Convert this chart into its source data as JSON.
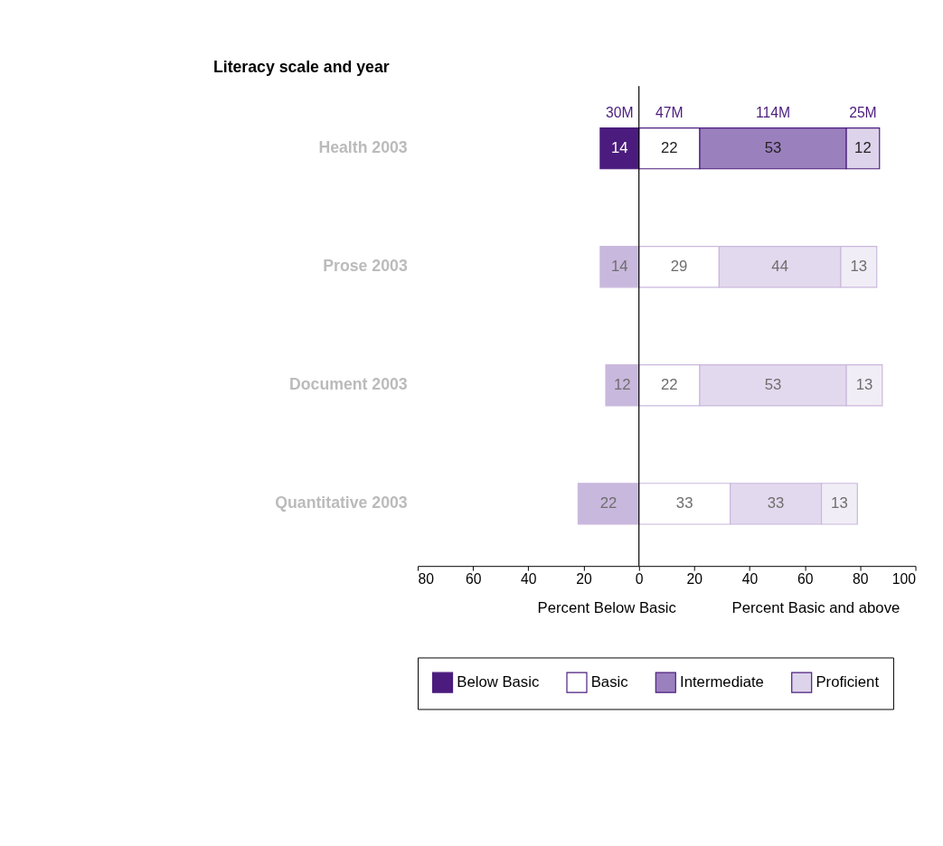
{
  "chart_data": {
    "type": "bar",
    "orientation": "horizontal",
    "ylabel": "Literacy scale and year",
    "categories": [
      "Health 2003",
      "Prose 2003",
      "Document 2003",
      "Quantitative 2003"
    ],
    "series": [
      {
        "name": "Below Basic",
        "color": "#4b1c7e",
        "colors": [
          "#4b1c7e",
          "#c9b8dd",
          "#c9b8dd",
          "#c9b8dd"
        ],
        "base": [
          -14,
          -14,
          -12,
          -22
        ],
        "values": [
          14,
          14,
          12,
          22
        ],
        "value_labels": [
          "14",
          "14",
          "12",
          "22"
        ]
      },
      {
        "name": "Basic",
        "color": "#ffffff",
        "colors": [
          "#ffffff",
          "#ffffff",
          "#ffffff",
          "#ffffff"
        ],
        "base": [
          0,
          0,
          0,
          0
        ],
        "values": [
          22,
          29,
          22,
          33
        ],
        "value_labels": [
          "22",
          "29",
          "22",
          "33"
        ]
      },
      {
        "name": "Intermediate",
        "color": "#9b80be",
        "colors": [
          "#9b80be",
          "#e3d9ee",
          "#e3d9ee",
          "#e3d9ee"
        ],
        "base": [
          22,
          29,
          22,
          33
        ],
        "values": [
          53,
          44,
          53,
          33
        ],
        "value_labels": [
          "53",
          "44",
          "53",
          "33"
        ]
      },
      {
        "name": "Proficient",
        "color": "#ddd3ea",
        "colors": [
          "#ddd3ea",
          "#f1edf6",
          "#f1edf6",
          "#f1edf6"
        ],
        "base": [
          75,
          73,
          75,
          66
        ],
        "values": [
          12,
          13,
          13,
          13
        ],
        "value_labels": [
          "12",
          "13",
          "13",
          "13"
        ]
      }
    ],
    "xlim": [
      -80,
      100
    ],
    "xticks": [
      {
        "value": -80,
        "label": "80"
      },
      {
        "value": -60,
        "label": "60"
      },
      {
        "value": -40,
        "label": "40"
      },
      {
        "value": -20,
        "label": "20"
      },
      0,
      20,
      40,
      60,
      80,
      100
    ],
    "ref_lines": [
      {
        "axis": "x",
        "value": 0,
        "color": "#000000"
      }
    ],
    "annotations": [
      "30M",
      "47M",
      "114M",
      "25M",
      "Percent Below Basic",
      "Percent Basic and above"
    ],
    "grid": false,
    "legend": "bottom"
  }
}
